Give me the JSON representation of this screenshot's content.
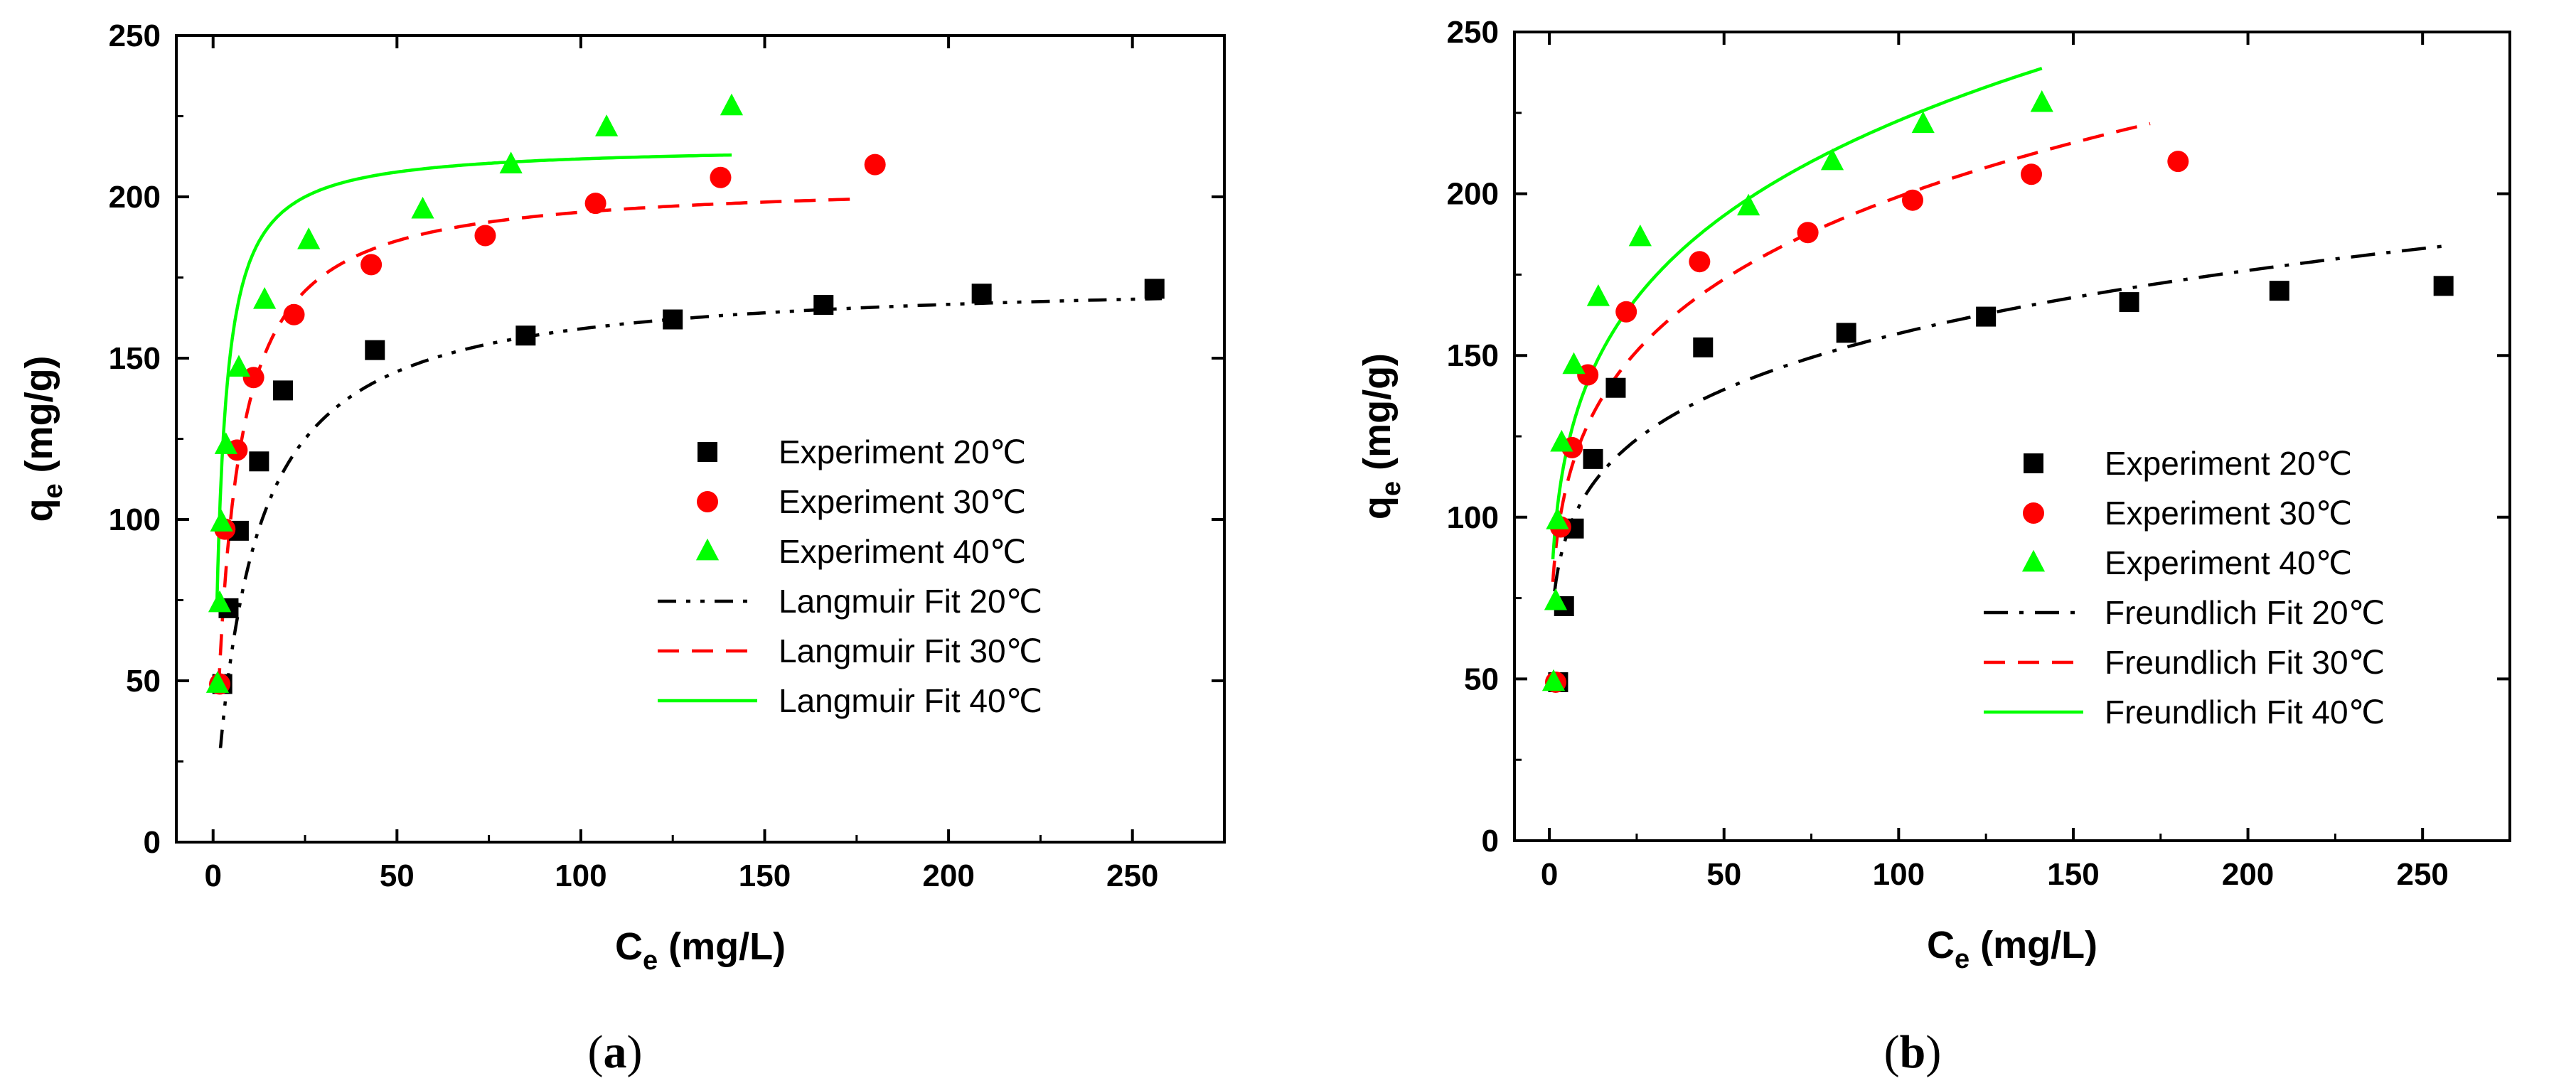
{
  "chart_data": [
    {
      "type": "scatter",
      "panel_label": "a",
      "xlabel": {
        "main": "C",
        "sub": "e",
        "unit": " (mg/L)"
      },
      "ylabel": {
        "main": "q",
        "sub": "e",
        "unit": " (mg/g)"
      },
      "xlim": [
        -10,
        275
      ],
      "ylim": [
        0,
        250
      ],
      "xticks": [
        0,
        50,
        100,
        150,
        200,
        250
      ],
      "yticks": [
        0,
        50,
        100,
        150,
        200,
        250
      ],
      "legend_position": "center-right",
      "series": [
        {
          "name": "Experiment 20℃",
          "kind": "points",
          "marker": "square",
          "color": "#000000",
          "x": [
            2.5,
            4.2,
            7.0,
            12.5,
            19.0,
            44.0,
            85.0,
            125.0,
            166.0,
            209.0,
            256.0
          ],
          "y": [
            49,
            72.5,
            96.5,
            118,
            140,
            152.5,
            157,
            162,
            166.5,
            170,
            171.5
          ]
        },
        {
          "name": "Experiment 30℃",
          "kind": "points",
          "marker": "circle",
          "color": "#ff0000",
          "x": [
            1.8,
            3.2,
            6.5,
            11.0,
            22.0,
            43.0,
            74.0,
            104.0,
            138.0,
            180.0
          ],
          "y": [
            49,
            97,
            121.5,
            144,
            163.5,
            179,
            188,
            198,
            206,
            210
          ]
        },
        {
          "name": "Experiment 40℃",
          "kind": "points",
          "marker": "triangle",
          "color": "#00ff00",
          "x": [
            1.2,
            1.8,
            2.3,
            3.5,
            7.0,
            14.0,
            26.0,
            57.0,
            81.0,
            107.0,
            141.0
          ],
          "y": [
            49,
            74,
            99,
            123,
            147,
            168,
            186.5,
            196,
            210,
            221.5,
            228
          ]
        },
        {
          "name": "Langmuir Fit 20℃",
          "kind": "line",
          "dash": "dash-dot-dot",
          "color": "#000000",
          "model": "langmuir",
          "qm": 175,
          "K": 0.1,
          "x_range": [
            2,
            258
          ]
        },
        {
          "name": "Langmuir Fit 30℃",
          "kind": "line",
          "dash": "dash",
          "color": "#ff0000",
          "model": "langmuir",
          "qm": 205,
          "K": 0.2,
          "x_range": [
            1.5,
            175
          ]
        },
        {
          "name": "Langmuir  Fit 40℃",
          "kind": "line",
          "dash": "solid",
          "color": "#00ff00",
          "model": "langmuir",
          "qm": 216,
          "K": 0.5,
          "x_range": [
            1.0,
            141
          ]
        }
      ]
    },
    {
      "type": "scatter",
      "panel_label": "b",
      "xlabel": {
        "main": "C",
        "sub": "e",
        "unit": " (mg/L)"
      },
      "ylabel": {
        "main": "q",
        "sub": "e",
        "unit": " (mg/g)"
      },
      "xlim": [
        -10,
        275
      ],
      "ylim": [
        0,
        250
      ],
      "xticks": [
        0,
        50,
        100,
        150,
        200,
        250
      ],
      "yticks": [
        0,
        50,
        100,
        150,
        200,
        250
      ],
      "legend_position": "center-right",
      "series": [
        {
          "name": "Experiment 20℃",
          "kind": "points",
          "marker": "square",
          "color": "#000000",
          "x": [
            2.5,
            4.2,
            7.0,
            12.5,
            19.0,
            44.0,
            85.0,
            125.0,
            166.0,
            209.0,
            256.0
          ],
          "y": [
            49,
            72.5,
            96.5,
            118,
            140,
            152.5,
            157,
            162,
            166.5,
            170,
            171.5
          ]
        },
        {
          "name": "Experiment 30℃",
          "kind": "points",
          "marker": "circle",
          "color": "#ff0000",
          "x": [
            1.8,
            3.2,
            6.5,
            11.0,
            22.0,
            43.0,
            74.0,
            104.0,
            138.0,
            180.0
          ],
          "y": [
            49,
            97,
            121.5,
            144,
            163.5,
            179,
            188,
            198,
            206,
            210
          ]
        },
        {
          "name": "Experiment 40℃",
          "kind": "points",
          "marker": "triangle",
          "color": "#00ff00",
          "x": [
            1.2,
            1.8,
            2.3,
            3.5,
            7.0,
            14.0,
            26.0,
            57.0,
            81.0,
            107.0,
            141.0
          ],
          "y": [
            49,
            74,
            99,
            123,
            147,
            168,
            186.5,
            196,
            210,
            221.5,
            228
          ]
        },
        {
          "name": "Freundlich  Fit 20℃",
          "kind": "line",
          "dash": "dash-dot",
          "color": "#000000",
          "model": "freundlich",
          "Kf": 72,
          "n_inv": 0.169,
          "x_range": [
            1.5,
            256
          ]
        },
        {
          "name": "Freundlich  Fit 30℃",
          "kind": "line",
          "dash": "dash",
          "color": "#ff0000",
          "model": "freundlich",
          "Kf": 80,
          "n_inv": 0.198,
          "x_range": [
            1.0,
            172
          ]
        },
        {
          "name": "Freundlich  Fit 40℃",
          "kind": "line",
          "dash": "solid",
          "color": "#00ff00",
          "model": "freundlich",
          "Kf": 87,
          "n_inv": 0.204,
          "x_range": [
            1.0,
            141
          ]
        }
      ]
    }
  ]
}
